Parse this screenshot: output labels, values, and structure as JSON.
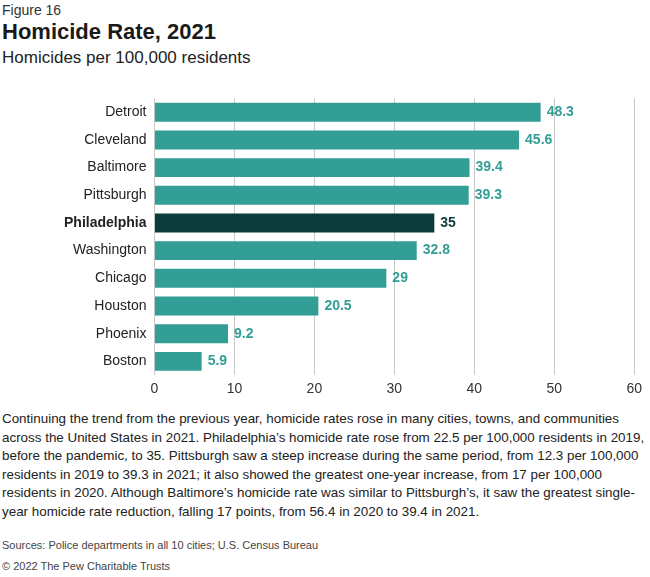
{
  "figure_label": "Figure 16",
  "chart_data": {
    "type": "bar",
    "orientation": "horizontal",
    "title": "Homicide Rate, 2021",
    "subtitle": "Homicides per 100,000 residents",
    "categories": [
      "Detroit",
      "Cleveland",
      "Baltimore",
      "Pittsburgh",
      "Philadelphia",
      "Washington",
      "Chicago",
      "Houston",
      "Phoenix",
      "Boston"
    ],
    "values": [
      48.3,
      45.6,
      39.4,
      39.3,
      35,
      32.8,
      29,
      20.5,
      9.2,
      5.9
    ],
    "colors": [
      "#339e96",
      "#339e96",
      "#339e96",
      "#339e96",
      "#0c3b39",
      "#339e96",
      "#339e96",
      "#339e96",
      "#339e96",
      "#339e96"
    ],
    "xlim": [
      0,
      60
    ],
    "xticks": [
      0,
      10,
      20,
      30,
      40,
      50,
      60
    ],
    "grid": true,
    "data_labels": true,
    "legend": false
  },
  "caption": "Continuing the trend from the previous year, homicide rates rose in many cities, towns, and communities across the United States in 2021. Philadelphia’s homicide rate rose from 22.5 per 100,000 residents in 2019, before the pandemic, to 35. Pittsburgh saw a steep increase during the same period, from 12.3 per 100,000 residents in 2019 to 39.3 in 2021; it also showed the greatest one-year increase, from 17 per 100,000 residents in 2020. Although Baltimore’s homicide rate was similar to Pittsburgh’s, it saw the greatest single-year homicide rate reduction, falling 17 points, from 56.4 in 2020 to 39.4 in 2021.",
  "sources": "Sources: Police departments in all 10 cities; U.S. Census Bureau",
  "copyright": "© 2022 The Pew Charitable Trusts"
}
